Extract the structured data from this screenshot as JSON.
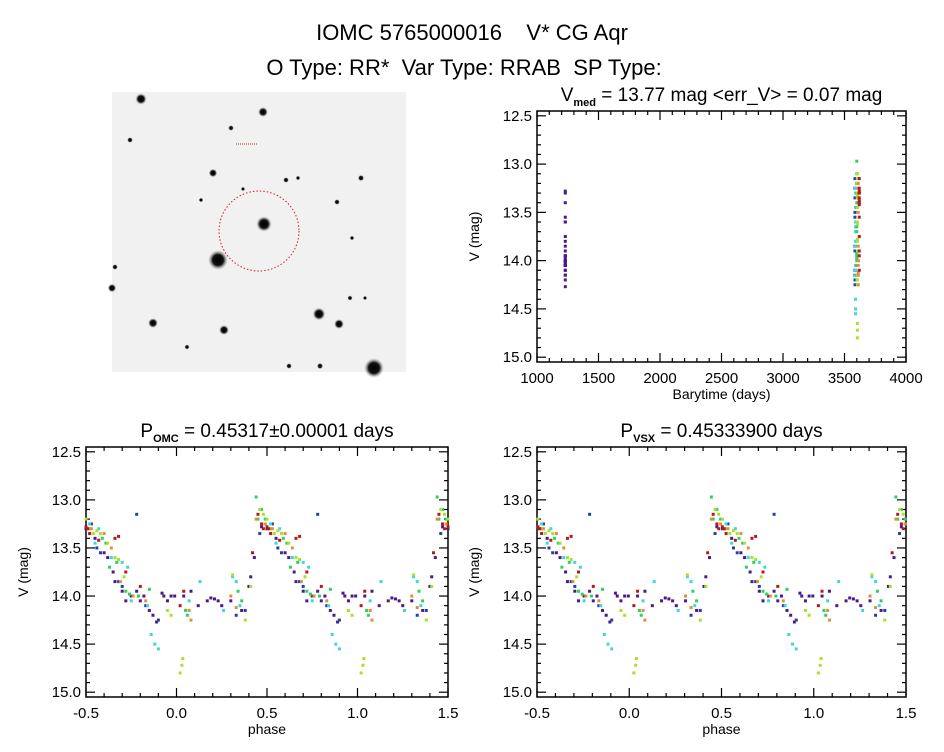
{
  "header": {
    "title": "IOMC 5765000016    V* CG Aqr",
    "subtitle": "O Type: RR*  Var Type: RRAB  SP Type:"
  },
  "palette": [
    "#4b1a8a",
    "#2342a8",
    "#3fd6e0",
    "#2fd060",
    "#a6e22e",
    "#e0903c",
    "#b81818"
  ],
  "sky_image": {
    "background": "#f1f1f1",
    "marker_color": "#cc2020",
    "target_label": "V* CG Aqr"
  },
  "chart_data": [
    {
      "type": "scatter",
      "id": "time-series",
      "title_main": "V",
      "title_sub": "med",
      "title_rest": " = 13.77 mag <err_V> = 0.07 mag",
      "xlabel": "Barytime (days)",
      "ylabel": "V (mag)",
      "xlim": [
        1000,
        4000
      ],
      "ylim": [
        15.05,
        12.45
      ],
      "y_inverted": true,
      "x_ticks": [
        "1000",
        "1500",
        "2000",
        "2500",
        "3000",
        "3500",
        "4000"
      ],
      "y_ticks": [
        "12.5",
        "13.0",
        "13.5",
        "14.0",
        "14.5",
        "15.0"
      ],
      "x_field": "t"
    },
    {
      "type": "scatter",
      "id": "folded-omc",
      "title_main": "P",
      "title_sub": "OMC",
      "title_rest": " = 0.45317±0.00001 days",
      "xlabel": "phase",
      "ylabel": "V (mag)",
      "xlim": [
        -0.5,
        1.5
      ],
      "ylim": [
        15.05,
        12.45
      ],
      "y_inverted": true,
      "x_ticks": [
        "-0.5",
        "0.0",
        "0.5",
        "1.0",
        "1.5"
      ],
      "y_ticks": [
        "12.5",
        "13.0",
        "13.5",
        "14.0",
        "14.5",
        "15.0"
      ],
      "x_field": "phase",
      "phase_shift": 0
    },
    {
      "type": "scatter",
      "id": "folded-vsx",
      "title_main": "P",
      "title_sub": "VSX",
      "title_rest": " = 0.45333900 days",
      "xlabel": "phase",
      "ylabel": "V (mag)",
      "xlim": [
        -0.5,
        1.5
      ],
      "ylim": [
        15.05,
        12.45
      ],
      "y_inverted": true,
      "x_ticks": [
        "-0.5",
        "0.0",
        "0.5",
        "1.0",
        "1.5"
      ],
      "y_ticks": [
        "12.5",
        "13.0",
        "13.5",
        "14.0",
        "14.5",
        "15.0"
      ],
      "x_field": "phase",
      "phase_shift": 0.005
    }
  ],
  "observations_fields": [
    "t",
    "phase",
    "V",
    "color"
  ],
  "observations": [
    [
      1230,
      0.6,
      13.55,
      0
    ],
    [
      1230,
      0.66,
      13.85,
      0
    ],
    [
      1230,
      0.7,
      13.95,
      0
    ],
    [
      1230,
      0.72,
      14.05,
      0
    ],
    [
      1230,
      0.75,
      14.0,
      0
    ],
    [
      1230,
      0.78,
      13.95,
      0
    ],
    [
      1230,
      0.8,
      14.05,
      0
    ],
    [
      1230,
      0.82,
      14.0,
      0
    ],
    [
      1230,
      0.85,
      14.15,
      0
    ],
    [
      1230,
      0.87,
      14.2,
      0
    ],
    [
      1230,
      0.89,
      14.27,
      0
    ],
    [
      1230,
      0.92,
      13.97,
      0
    ],
    [
      1230,
      0.93,
      14.0,
      0
    ],
    [
      1230,
      0.95,
      14.05,
      0
    ],
    [
      1230,
      0.97,
      14.0,
      0
    ],
    [
      1230,
      0.99,
      14.0,
      0
    ],
    [
      1230,
      0.04,
      14.0,
      0
    ],
    [
      1230,
      0.08,
      13.95,
      0
    ],
    [
      1230,
      0.12,
      14.1,
      0
    ],
    [
      1230,
      0.17,
      14.05,
      0
    ],
    [
      1230,
      0.19,
      14.02,
      0
    ],
    [
      1230,
      0.21,
      14.03,
      0
    ],
    [
      1230,
      0.23,
      14.05,
      0
    ],
    [
      1230,
      0.25,
      14.1,
      0
    ],
    [
      1230,
      0.3,
      14.05,
      0
    ],
    [
      1230,
      0.36,
      14.15,
      0
    ],
    [
      1230,
      0.4,
      13.9,
      0
    ],
    [
      1230,
      0.41,
      13.8,
      0
    ],
    [
      1230,
      0.43,
      13.6,
      0
    ],
    [
      1230,
      0.47,
      13.28,
      0
    ],
    [
      1230,
      0.5,
      13.3,
      0
    ],
    [
      1230,
      0.62,
      13.6,
      0
    ],
    [
      1230,
      0.55,
      13.4,
      0
    ],
    [
      1230,
      0.65,
      13.75,
      0
    ],
    [
      3585,
      0.53,
      13.25,
      1
    ],
    [
      3585,
      0.56,
      13.5,
      1
    ],
    [
      3585,
      0.58,
      13.55,
      1
    ],
    [
      3585,
      0.78,
      13.15,
      1
    ],
    [
      3585,
      0.68,
      13.85,
      1
    ],
    [
      3585,
      0.83,
      14.1,
      1
    ],
    [
      3585,
      0.9,
      14.25,
      1
    ],
    [
      3585,
      0.33,
      14.2,
      1
    ],
    [
      3585,
      0.38,
      14.15,
      1
    ],
    [
      3585,
      0.46,
      13.35,
      1
    ],
    [
      3585,
      0.7,
      13.9,
      1
    ],
    [
      3590,
      0.55,
      13.45,
      2
    ],
    [
      3590,
      0.57,
      13.3,
      2
    ],
    [
      3590,
      0.7,
      13.65,
      2
    ],
    [
      3590,
      0.73,
      13.7,
      2
    ],
    [
      3590,
      0.86,
      14.4,
      2
    ],
    [
      3590,
      0.88,
      14.5,
      2
    ],
    [
      3590,
      0.9,
      14.55,
      2
    ],
    [
      3590,
      0.07,
      14.05,
      2
    ],
    [
      3590,
      0.13,
      13.85,
      2
    ],
    [
      3590,
      0.26,
      14.15,
      2
    ],
    [
      3590,
      0.31,
      13.8,
      2
    ],
    [
      3590,
      0.33,
      13.85,
      2
    ],
    [
      3590,
      0.35,
      14.1,
      2
    ],
    [
      3590,
      0.52,
      13.25,
      2
    ],
    [
      3590,
      0.64,
      13.6,
      2
    ],
    [
      3590,
      0.75,
      14.05,
      2
    ],
    [
      3590,
      0.84,
      14.1,
      2
    ],
    [
      3600,
      0.44,
      12.97,
      3
    ],
    [
      3600,
      0.47,
      13.1,
      3
    ],
    [
      3600,
      0.49,
      13.2,
      3
    ],
    [
      3600,
      0.51,
      13.3,
      3
    ],
    [
      3600,
      0.59,
      13.4,
      3
    ],
    [
      3600,
      0.61,
      13.45,
      3
    ],
    [
      3600,
      0.63,
      13.7,
      3
    ],
    [
      3600,
      0.67,
      13.65,
      3
    ],
    [
      3600,
      0.72,
      13.95,
      3
    ],
    [
      3600,
      0.74,
      13.98,
      3
    ],
    [
      3600,
      0.79,
      14.0,
      3
    ],
    [
      3600,
      0.85,
      13.93,
      3
    ],
    [
      3600,
      0.05,
      14.15,
      3
    ],
    [
      3600,
      0.06,
      14.2,
      3
    ],
    [
      3600,
      0.34,
      13.95,
      3
    ],
    [
      3600,
      0.36,
      14.05,
      3
    ],
    [
      3600,
      0.45,
      13.2,
      3
    ],
    [
      3605,
      0.46,
      13.1,
      4
    ],
    [
      3605,
      0.48,
      13.15,
      4
    ],
    [
      3605,
      0.5,
      13.2,
      4
    ],
    [
      3605,
      0.52,
      13.3,
      4
    ],
    [
      3605,
      0.56,
      13.32,
      4
    ],
    [
      3605,
      0.58,
      13.35,
      4
    ],
    [
      3605,
      0.62,
      13.45,
      4
    ],
    [
      3605,
      0.66,
      13.6,
      4
    ],
    [
      3605,
      0.68,
      13.62,
      4
    ],
    [
      3605,
      0.71,
      13.8,
      4
    ],
    [
      3605,
      0.95,
      14.15,
      4
    ],
    [
      3605,
      0.97,
      14.2,
      4
    ],
    [
      3605,
      0.02,
      14.8,
      4
    ],
    [
      3605,
      0.03,
      14.72,
      4
    ],
    [
      3605,
      0.035,
      14.65,
      4
    ],
    [
      3605,
      0.31,
      13.78,
      4
    ],
    [
      3605,
      0.38,
      14.25,
      4
    ],
    [
      3605,
      0.41,
      13.9,
      4
    ],
    [
      3605,
      0.54,
      13.35,
      4
    ],
    [
      3612,
      0.49,
      13.25,
      5
    ],
    [
      3612,
      0.53,
      13.3,
      5
    ],
    [
      3612,
      0.6,
      13.35,
      5
    ],
    [
      3612,
      0.64,
      13.5,
      5
    ],
    [
      3612,
      0.69,
      13.85,
      5
    ],
    [
      3612,
      0.76,
      14.0,
      5
    ],
    [
      3612,
      0.83,
      14.05,
      5
    ],
    [
      3612,
      0.07,
      14.15,
      5
    ],
    [
      3612,
      0.08,
      14.25,
      5
    ],
    [
      3612,
      0.3,
      14.0,
      5
    ],
    [
      3612,
      0.33,
      14.12,
      5
    ],
    [
      3612,
      0.44,
      13.2,
      5
    ],
    [
      3620,
      0.45,
      13.15,
      6
    ],
    [
      3620,
      0.47,
      13.25,
      6
    ],
    [
      3620,
      0.48,
      13.3,
      6
    ],
    [
      3620,
      0.5,
      13.28,
      6
    ],
    [
      3620,
      0.51,
      13.3,
      6
    ],
    [
      3620,
      0.52,
      13.35,
      6
    ],
    [
      3620,
      0.57,
      13.42,
      6
    ],
    [
      3620,
      0.66,
      13.4,
      6
    ],
    [
      3620,
      0.68,
      13.38,
      6
    ],
    [
      3620,
      0.72,
      13.75,
      6
    ],
    [
      3620,
      0.8,
      13.9,
      6
    ],
    [
      3620,
      0.02,
      14.1,
      6
    ],
    [
      3620,
      0.04,
      13.95,
      6
    ],
    [
      3620,
      0.42,
      13.55,
      6
    ]
  ]
}
